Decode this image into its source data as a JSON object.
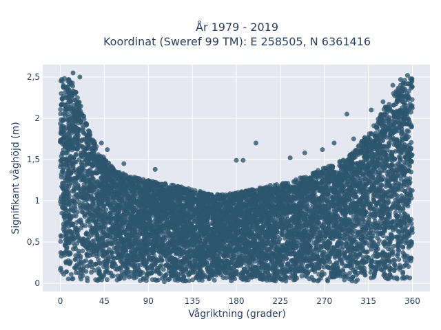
{
  "chart_data": {
    "type": "scatter",
    "title_lines": [
      "År 1979 - 2019",
      "Koordinat (Sweref 99 TM): E 258505, N 6361416"
    ],
    "xlabel": "Vågriktning (grader)",
    "ylabel": "Signifikant våghöjd (m)",
    "xlim": [
      -18,
      378
    ],
    "ylim": [
      -0.1,
      2.65
    ],
    "x_ticks": [
      0,
      45,
      90,
      135,
      180,
      225,
      270,
      315,
      360
    ],
    "x_tick_labels": [
      "0",
      "45",
      "90",
      "135",
      "180",
      "225",
      "270",
      "315",
      "360"
    ],
    "y_ticks": [
      0,
      0.5,
      1,
      1.5,
      2,
      2.5
    ],
    "y_tick_labels": [
      "0",
      "0,5",
      "1",
      "1,5",
      "2",
      "2,5"
    ],
    "grid": true,
    "point_color": "#2e566e",
    "plot_background": "#e5e8f1",
    "upper_envelope": {
      "x": [
        0,
        10,
        20,
        30,
        40,
        50,
        60,
        70,
        80,
        90,
        100,
        110,
        120,
        130,
        140,
        150,
        160,
        170,
        180,
        190,
        200,
        210,
        220,
        230,
        240,
        250,
        260,
        270,
        280,
        290,
        300,
        310,
        320,
        330,
        340,
        350,
        360
      ],
      "y": [
        2.5,
        2.5,
        2.2,
        1.85,
        1.6,
        1.45,
        1.35,
        1.3,
        1.28,
        1.25,
        1.22,
        1.2,
        1.18,
        1.15,
        1.12,
        1.1,
        1.08,
        1.08,
        1.1,
        1.12,
        1.15,
        1.18,
        1.2,
        1.22,
        1.25,
        1.3,
        1.35,
        1.4,
        1.45,
        1.5,
        1.6,
        1.75,
        1.9,
        2.1,
        2.3,
        2.45,
        2.5
      ]
    },
    "outliers": [
      {
        "x": 13,
        "y": 2.55
      },
      {
        "x": 20,
        "y": 2.5
      },
      {
        "x": 42,
        "y": 1.7
      },
      {
        "x": 48,
        "y": 1.62
      },
      {
        "x": 65,
        "y": 1.45
      },
      {
        "x": 97,
        "y": 1.38
      },
      {
        "x": 180,
        "y": 1.49
      },
      {
        "x": 187,
        "y": 1.49
      },
      {
        "x": 200,
        "y": 1.7
      },
      {
        "x": 235,
        "y": 1.52
      },
      {
        "x": 250,
        "y": 1.58
      },
      {
        "x": 268,
        "y": 1.62
      },
      {
        "x": 280,
        "y": 1.7
      },
      {
        "x": 293,
        "y": 2.05
      },
      {
        "x": 300,
        "y": 1.75
      },
      {
        "x": 318,
        "y": 2.1
      },
      {
        "x": 330,
        "y": 2.2
      },
      {
        "x": 340,
        "y": 2.4
      },
      {
        "x": 348,
        "y": 2.47
      },
      {
        "x": 355,
        "y": 2.52
      }
    ],
    "num_points": 9000
  }
}
